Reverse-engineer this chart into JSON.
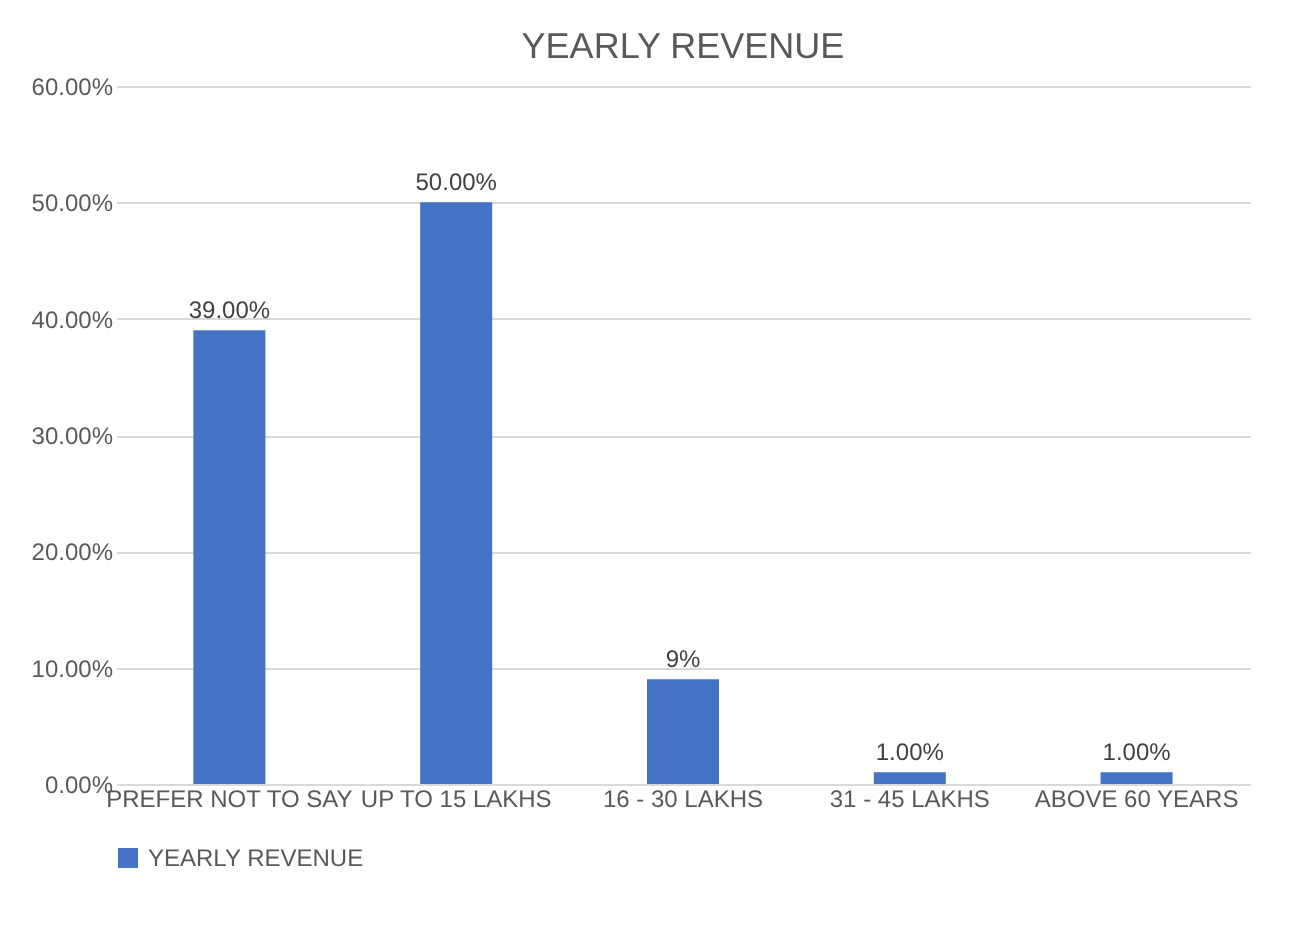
{
  "chart_data": {
    "type": "bar",
    "title": "YEARLY REVENUE",
    "categories": [
      "PREFER NOT TO SAY",
      "UP TO 15 LAKHS",
      "16 - 30 LAKHS",
      "31 - 45 LAKHS",
      "ABOVE 60 YEARS"
    ],
    "series": [
      {
        "name": "YEARLY REVENUE",
        "color": "#4472c4",
        "values": [
          39,
          50,
          9,
          1,
          1
        ],
        "value_labels": [
          "39.00%",
          "50.00%",
          "9%",
          "1.00%",
          "1.00%"
        ]
      }
    ],
    "ylim": [
      0,
      60
    ],
    "yticks": [
      {
        "value": 0,
        "label": "0.00%"
      },
      {
        "value": 10,
        "label": "10.00%"
      },
      {
        "value": 20,
        "label": "20.00%"
      },
      {
        "value": 30,
        "label": "30.00%"
      },
      {
        "value": 40,
        "label": "40.00%"
      },
      {
        "value": 50,
        "label": "50.00%"
      },
      {
        "value": 60,
        "label": "60.00%"
      }
    ],
    "grid": "y",
    "legend": "bottom"
  }
}
